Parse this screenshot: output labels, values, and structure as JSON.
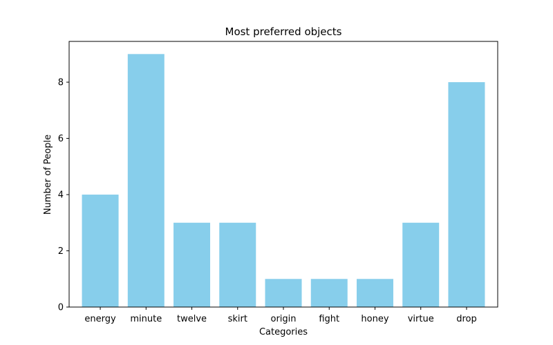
{
  "chart_data": {
    "type": "bar",
    "title": "Most preferred objects",
    "xlabel": "Categories",
    "ylabel": "Number of People",
    "categories": [
      "energy",
      "minute",
      "twelve",
      "skirt",
      "origin",
      "fight",
      "honey",
      "virtue",
      "drop"
    ],
    "values": [
      4,
      9,
      3,
      3,
      1,
      1,
      1,
      3,
      8
    ],
    "ylim": [
      0,
      9.45
    ],
    "yticks": [
      0,
      2,
      4,
      6,
      8
    ],
    "grid": false,
    "bar_color": "#87ceeb"
  }
}
